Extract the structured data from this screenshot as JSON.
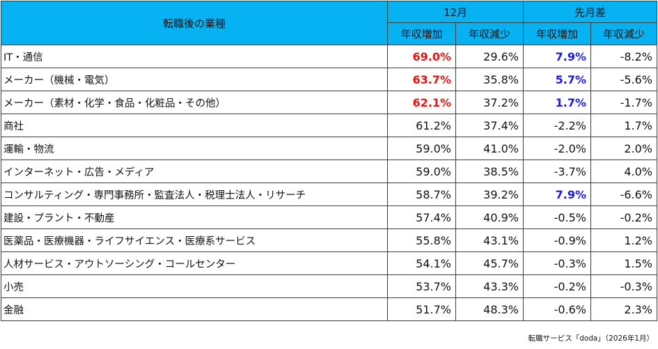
{
  "header": {
    "category": "転職後の業種",
    "group_current": "12月",
    "group_diff": "先月差",
    "col_increase": "年収増加",
    "col_decrease": "年収減少"
  },
  "rows": [
    {
      "name": "IT・通信",
      "inc": "69.0%",
      "dec": "29.6%",
      "d_inc": "7.9%",
      "d_dec": "-8.2%",
      "inc_hl": "red",
      "d_inc_hl": "blue"
    },
    {
      "name": "メーカー（機械・電気）",
      "inc": "63.7%",
      "dec": "35.8%",
      "d_inc": "5.7%",
      "d_dec": "-5.6%",
      "inc_hl": "red",
      "d_inc_hl": "blue"
    },
    {
      "name": "メーカー（素材・化学・食品・化粧品・その他）",
      "inc": "62.1%",
      "dec": "37.2%",
      "d_inc": "1.7%",
      "d_dec": "-1.7%",
      "inc_hl": "red",
      "d_inc_hl": "blue"
    },
    {
      "name": "商社",
      "inc": "61.2%",
      "dec": "37.4%",
      "d_inc": "-2.2%",
      "d_dec": "1.7%",
      "inc_hl": "",
      "d_inc_hl": ""
    },
    {
      "name": "運輸・物流",
      "inc": "59.0%",
      "dec": "41.0%",
      "d_inc": "-2.0%",
      "d_dec": "2.0%",
      "inc_hl": "",
      "d_inc_hl": ""
    },
    {
      "name": "インターネット・広告・メディア",
      "inc": "59.0%",
      "dec": "38.5%",
      "d_inc": "-3.7%",
      "d_dec": "4.0%",
      "inc_hl": "",
      "d_inc_hl": ""
    },
    {
      "name": "コンサルティング・専門事務所・監査法人・税理士法人・リサーチ",
      "inc": "58.7%",
      "dec": "39.2%",
      "d_inc": "7.9%",
      "d_dec": "-6.6%",
      "inc_hl": "",
      "d_inc_hl": "blue"
    },
    {
      "name": "建設・プラント・不動産",
      "inc": "57.4%",
      "dec": "40.9%",
      "d_inc": "-0.5%",
      "d_dec": "-0.2%",
      "inc_hl": "",
      "d_inc_hl": ""
    },
    {
      "name": "医薬品・医療機器・ライフサイエンス・医療系サービス",
      "inc": "55.8%",
      "dec": "43.1%",
      "d_inc": "-0.9%",
      "d_dec": "1.2%",
      "inc_hl": "",
      "d_inc_hl": ""
    },
    {
      "name": "人材サービス・アウトソーシング・コールセンター",
      "inc": "54.1%",
      "dec": "45.7%",
      "d_inc": "-0.3%",
      "d_dec": "1.5%",
      "inc_hl": "",
      "d_inc_hl": ""
    },
    {
      "name": "小売",
      "inc": "53.7%",
      "dec": "43.3%",
      "d_inc": "-0.2%",
      "d_dec": "-0.3%",
      "inc_hl": "",
      "d_inc_hl": ""
    },
    {
      "name": "金融",
      "inc": "51.7%",
      "dec": "48.3%",
      "d_inc": "-0.6%",
      "d_dec": "2.3%",
      "inc_hl": "",
      "d_inc_hl": ""
    }
  ],
  "source": "転職サービス「doda」（2026年1月）",
  "colors": {
    "header_bg": "#06b2f2",
    "highlight_red": "#ee1111",
    "highlight_blue": "#1a1ae6",
    "border": "#3c3c3c"
  }
}
